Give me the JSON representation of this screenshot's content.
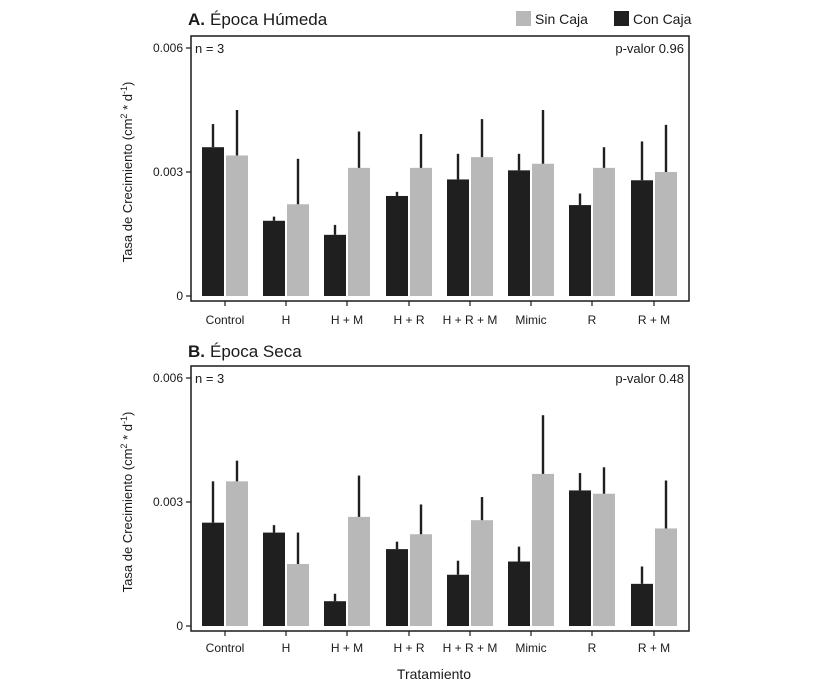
{
  "chart_data": [
    {
      "type": "bar",
      "panel_letter": "A.",
      "title": "Época Húmeda",
      "ylabel_prefix": "Tasa de Crecimiento (cm",
      "ylabel_sup1": "2",
      "ylabel_mid": " * d",
      "ylabel_sup2": "-1",
      "ylabel_suffix": ")",
      "xlabel": "",
      "ylim": [
        0,
        0.006
      ],
      "yticks": [
        0,
        0.003,
        0.006
      ],
      "ytick_labels": [
        "0",
        "0.003",
        "0.006"
      ],
      "n_label": "n = 3",
      "p_label": "p-valor 0.96",
      "categories": [
        "Control",
        "H",
        "H + M",
        "H + R",
        "H + R + M",
        "Mimic",
        "R",
        "R + M"
      ],
      "series": [
        {
          "name": "Con Caja",
          "color": "#1f1f1f",
          "values": [
            0.0036,
            0.00182,
            0.00148,
            0.00242,
            0.00282,
            0.00304,
            0.0022,
            0.0028
          ],
          "errors": [
            0.00056,
            0.0001,
            0.00024,
            0.0001,
            0.00062,
            0.0004,
            0.00028,
            0.00094
          ]
        },
        {
          "name": "Sin Caja",
          "color": "#b8b8b8",
          "values": [
            0.0034,
            0.00222,
            0.0031,
            0.0031,
            0.00336,
            0.0032,
            0.0031,
            0.003
          ],
          "errors": [
            0.0011,
            0.0011,
            0.00088,
            0.00082,
            0.00092,
            0.0013,
            0.0005,
            0.00114
          ]
        }
      ]
    },
    {
      "type": "bar",
      "panel_letter": "B.",
      "title": "Época Seca",
      "ylabel_prefix": "Tasa de Crecimiento (cm",
      "ylabel_sup1": "2",
      "ylabel_mid": " * d",
      "ylabel_sup2": "-1",
      "ylabel_suffix": ")",
      "xlabel": "Tratamiento",
      "ylim": [
        0,
        0.006
      ],
      "yticks": [
        0,
        0.003,
        0.006
      ],
      "ytick_labels": [
        "0",
        "0.003",
        "0.006"
      ],
      "n_label": "n = 3",
      "p_label": "p-valor 0.48",
      "categories": [
        "Control",
        "H",
        "H + M",
        "H + R",
        "H + R + M",
        "Mimic",
        "R",
        "R + M"
      ],
      "series": [
        {
          "name": "Con Caja",
          "color": "#1f1f1f",
          "values": [
            0.0025,
            0.00226,
            0.0006,
            0.00186,
            0.00124,
            0.00156,
            0.00328,
            0.00102
          ],
          "errors": [
            0.001,
            0.00018,
            0.00018,
            0.00018,
            0.00034,
            0.00036,
            0.00042,
            0.00042
          ]
        },
        {
          "name": "Sin Caja",
          "color": "#b8b8b8",
          "values": [
            0.0035,
            0.0015,
            0.00264,
            0.00222,
            0.00256,
            0.00368,
            0.0032,
            0.00236
          ],
          "errors": [
            0.0005,
            0.00076,
            0.001,
            0.00072,
            0.00056,
            0.00142,
            0.00064,
            0.00116
          ]
        }
      ]
    }
  ],
  "legend": [
    {
      "label": "Sin Caja",
      "color": "#b8b8b8"
    },
    {
      "label": "Con Caja",
      "color": "#1f1f1f"
    }
  ]
}
